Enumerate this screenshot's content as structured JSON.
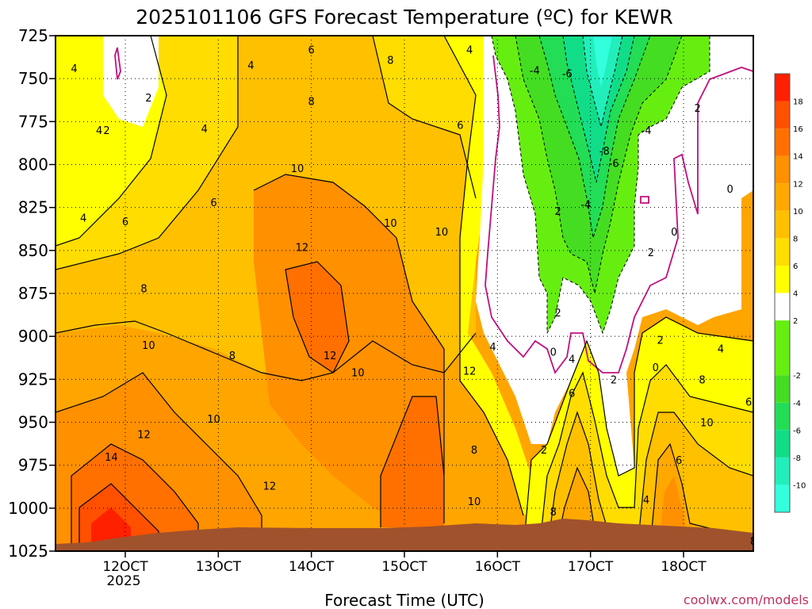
{
  "chart_data": {
    "type": "heatmap",
    "title": "2025101106 GFS Forecast Temperature (ºC) for KEWR",
    "xlabel": "Forecast Time (UTC)",
    "credit": "coolwx.com/models",
    "y_axis": {
      "scale": "pressure (reversed, increasing downward)",
      "range": [
        725,
        1025
      ],
      "ticks": [
        725,
        750,
        775,
        800,
        825,
        850,
        875,
        900,
        925,
        950,
        975,
        1000,
        1025
      ]
    },
    "x_axis": {
      "range_days": [
        11.25,
        18.75
      ],
      "ticks": [
        {
          "day": 12,
          "label": "12OCT",
          "sub": "2025"
        },
        {
          "day": 13,
          "label": "13OCT",
          "sub": ""
        },
        {
          "day": 14,
          "label": "14OCT",
          "sub": ""
        },
        {
          "day": 15,
          "label": "15OCT",
          "sub": ""
        },
        {
          "day": 16,
          "label": "16OCT",
          "sub": ""
        },
        {
          "day": 17,
          "label": "17OCT",
          "sub": ""
        },
        {
          "day": 18,
          "label": "18OCT",
          "sub": ""
        }
      ]
    },
    "grid": "dotted",
    "colorbar": {
      "placement": "right",
      "levels": [
        -12,
        -10,
        -8,
        -6,
        -4,
        -2,
        2,
        4,
        6,
        8,
        10,
        12,
        14,
        16,
        18,
        20
      ],
      "labels": [
        "-10",
        "-8",
        "-6",
        "-4",
        "-2",
        "2",
        "4",
        "6",
        "8",
        "10",
        "12",
        "14",
        "16",
        "18"
      ],
      "colors": [
        "#33ffdd",
        "#22eebb",
        "#11dd88",
        "#22dd55",
        "#44dd22",
        "#66ee11",
        "#ffffff",
        "#ffff00",
        "#ffdd00",
        "#ffc000",
        "#ffa800",
        "#ff9000",
        "#ff7000",
        "#ff5000",
        "#ff2000"
      ]
    },
    "contour_labels": [
      {
        "label": "4",
        "day": 11.45,
        "p": 744
      },
      {
        "label": "4",
        "day": 11.72,
        "p": 780
      },
      {
        "label": "2",
        "day": 11.8,
        "p": 780
      },
      {
        "label": "2",
        "day": 12.25,
        "p": 761
      },
      {
        "label": "4",
        "day": 12.85,
        "p": 779
      },
      {
        "label": "4",
        "day": 13.35,
        "p": 742
      },
      {
        "label": "6",
        "day": 14.0,
        "p": 733
      },
      {
        "label": "8",
        "day": 14.85,
        "p": 739
      },
      {
        "label": "8",
        "day": 14.0,
        "p": 763
      },
      {
        "label": "4",
        "day": 15.7,
        "p": 733
      },
      {
        "label": "6",
        "day": 15.6,
        "p": 777
      },
      {
        "label": "10",
        "day": 13.85,
        "p": 802
      },
      {
        "label": "6",
        "day": 12.95,
        "p": 822
      },
      {
        "label": "4",
        "day": 11.55,
        "p": 831
      },
      {
        "label": "6",
        "day": 12.0,
        "p": 833
      },
      {
        "label": "10",
        "day": 14.85,
        "p": 834
      },
      {
        "label": "10",
        "day": 15.4,
        "p": 839
      },
      {
        "label": "12",
        "day": 13.9,
        "p": 848
      },
      {
        "label": "8",
        "day": 12.2,
        "p": 872
      },
      {
        "label": "10",
        "day": 12.25,
        "p": 905
      },
      {
        "label": "8",
        "day": 13.15,
        "p": 911
      },
      {
        "label": "12",
        "day": 14.2,
        "p": 911
      },
      {
        "label": "10",
        "day": 14.5,
        "p": 921
      },
      {
        "label": "12",
        "day": 15.7,
        "p": 920
      },
      {
        "label": "4",
        "day": 15.95,
        "p": 906
      },
      {
        "label": "10",
        "day": 12.95,
        "p": 948
      },
      {
        "label": "12",
        "day": 12.2,
        "p": 957
      },
      {
        "label": "14",
        "day": 11.85,
        "p": 970
      },
      {
        "label": "12",
        "day": 13.55,
        "p": 987
      },
      {
        "label": "8",
        "day": 15.75,
        "p": 966
      },
      {
        "label": "10",
        "day": 15.75,
        "p": 996
      },
      {
        "label": "-4",
        "day": 16.4,
        "p": 745
      },
      {
        "label": "-6",
        "day": 16.75,
        "p": 747
      },
      {
        "label": "-4",
        "day": 17.6,
        "p": 780
      },
      {
        "label": "-8",
        "day": 17.15,
        "p": 792
      },
      {
        "label": "-6",
        "day": 17.25,
        "p": 799
      },
      {
        "label": "-4",
        "day": 16.95,
        "p": 823
      },
      {
        "label": "2",
        "day": 16.65,
        "p": 827
      },
      {
        "label": "2",
        "day": 18.15,
        "p": 767
      },
      {
        "label": "0",
        "day": 18.5,
        "p": 814
      },
      {
        "label": "0",
        "day": 17.9,
        "p": 839
      },
      {
        "label": "2",
        "day": 17.65,
        "p": 851
      },
      {
        "label": "2",
        "day": 18.82,
        "p": 879
      },
      {
        "label": "2",
        "day": 16.65,
        "p": 886
      },
      {
        "label": "0",
        "day": 16.6,
        "p": 909
      },
      {
        "label": "4",
        "day": 16.8,
        "p": 913
      },
      {
        "label": "2",
        "day": 17.75,
        "p": 902
      },
      {
        "label": "0",
        "day": 17.7,
        "p": 918
      },
      {
        "label": "4",
        "day": 18.4,
        "p": 907
      },
      {
        "label": "2",
        "day": 17.25,
        "p": 925
      },
      {
        "label": "6",
        "day": 16.8,
        "p": 933
      },
      {
        "label": "8",
        "day": 18.2,
        "p": 925
      },
      {
        "label": "6",
        "day": 18.7,
        "p": 938
      },
      {
        "label": "2",
        "day": 16.5,
        "p": 966
      },
      {
        "label": "10",
        "day": 18.25,
        "p": 950
      },
      {
        "label": "6",
        "day": 17.95,
        "p": 972
      },
      {
        "label": "4",
        "day": 17.6,
        "p": 995
      },
      {
        "label": "8",
        "day": 16.6,
        "p": 1002
      },
      {
        "label": "8",
        "day": 18.75,
        "p": 1019
      }
    ]
  }
}
